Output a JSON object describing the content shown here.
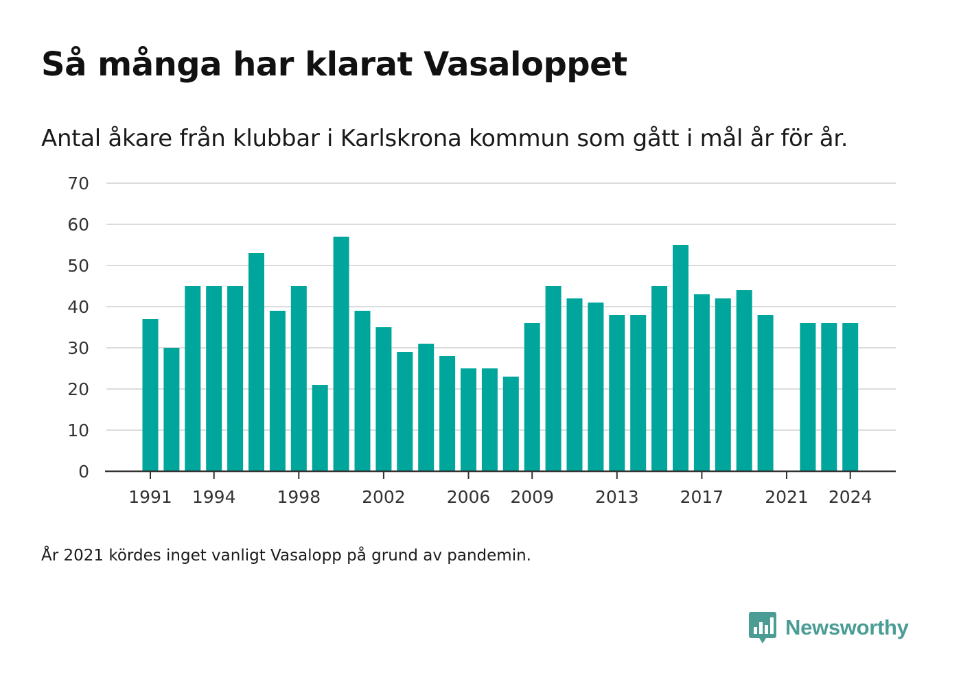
{
  "chart_data": {
    "type": "bar",
    "title": "Så många har klarat Vasaloppet",
    "subtitle": "Antal åkare från klubbar i Karlskrona kommun som gått i mål år för år.",
    "categories": [
      1991,
      1992,
      1993,
      1994,
      1995,
      1996,
      1997,
      1998,
      1999,
      2000,
      2001,
      2002,
      2003,
      2004,
      2005,
      2006,
      2007,
      2008,
      2009,
      2010,
      2011,
      2012,
      2013,
      2014,
      2015,
      2016,
      2017,
      2018,
      2019,
      2020,
      2021,
      2022,
      2023,
      2024
    ],
    "values": [
      37,
      30,
      45,
      45,
      45,
      53,
      39,
      45,
      21,
      57,
      39,
      35,
      29,
      31,
      28,
      25,
      25,
      23,
      36,
      45,
      42,
      41,
      38,
      38,
      45,
      55,
      43,
      42,
      44,
      38,
      null,
      36,
      36,
      36
    ],
    "x_tick_labels": [
      "1991",
      "1994",
      "1998",
      "2002",
      "2006",
      "2009",
      "2013",
      "2017",
      "2021",
      "2024"
    ],
    "y_tick_labels": [
      "0",
      "10",
      "20",
      "30",
      "40",
      "50",
      "60",
      "70"
    ],
    "ylim": [
      0,
      70
    ],
    "grid": true,
    "bar_color": "#00a59b",
    "note": "År 2021 kördes inget vanligt Vasalopp på grund av pandemin."
  },
  "brand": {
    "name": "Newsworthy",
    "icon": "newsworthy-logo-icon",
    "color": "#4a9c95"
  }
}
